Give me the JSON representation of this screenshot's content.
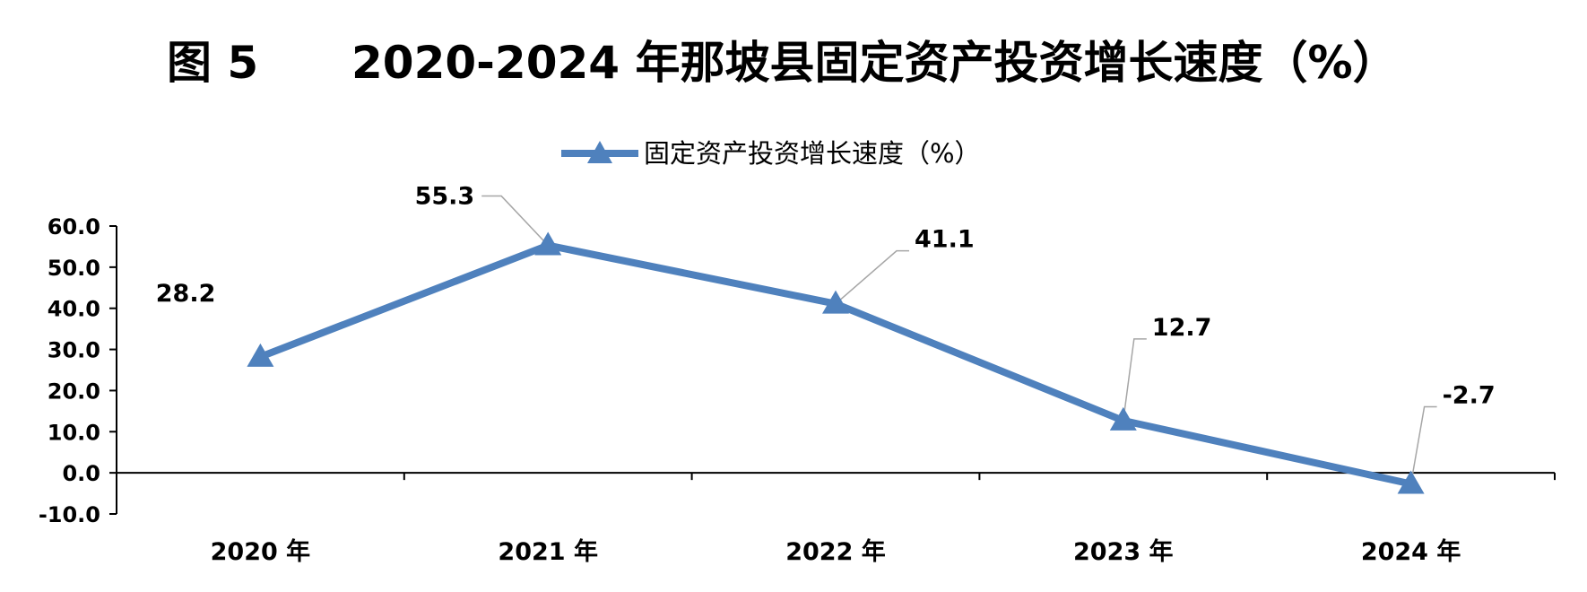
{
  "figure": {
    "title_prefix": "图 5",
    "title_main": "2020-2024 年那坡县固定资产投资增长速度（%）"
  },
  "colors": {
    "series": "#4F81BD",
    "axis": "#000000",
    "leader": "#A6A6A6"
  },
  "chart_data": {
    "type": "line",
    "title": "图 5 2020-2024 年那坡县固定资产投资增长速度（%）",
    "categories": [
      "2020 年",
      "2021 年",
      "2022 年",
      "2023 年",
      "2024 年"
    ],
    "series": [
      {
        "name": "固定资产投资增长速度（%）",
        "values": [
          28.2,
          55.3,
          41.1,
          12.7,
          -2.7
        ],
        "labels": [
          "28.2",
          "55.3",
          "41.1",
          "12.7",
          "-2.7"
        ],
        "marker": "triangle"
      }
    ],
    "xlabel": "",
    "ylabel": "",
    "ylim": [
      -10,
      60
    ],
    "yticks": [
      60,
      50,
      40,
      30,
      20,
      10,
      0,
      -10
    ],
    "ytick_labels": [
      "60.0",
      "50.0",
      "40.0",
      "30.0",
      "20.0",
      "10.0",
      "0.0",
      "-10.0"
    ],
    "grid": false,
    "legend": "top-center",
    "data_labels": true
  }
}
